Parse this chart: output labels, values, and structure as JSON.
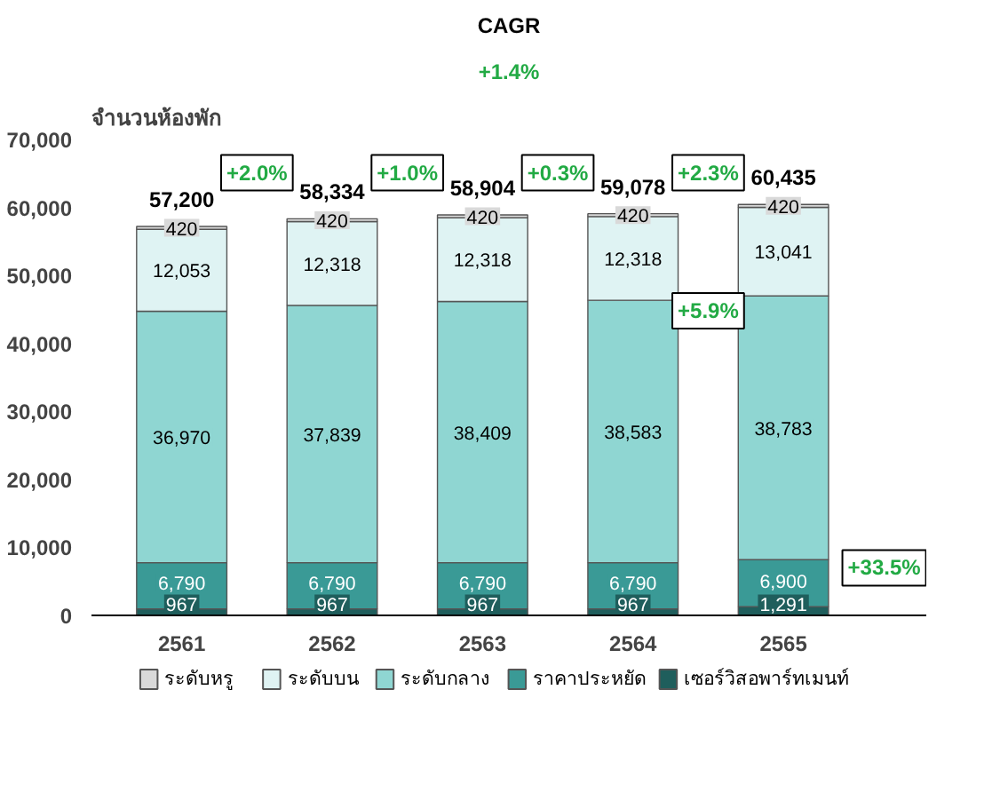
{
  "chart_data": {
    "type": "bar",
    "stacked": true,
    "ylabel": "จำนวนห้องพัก",
    "categories": [
      "2561",
      "2562",
      "2563",
      "2564",
      "2565"
    ],
    "series": [
      {
        "name": "เซอร์วิสอพาร์ทเมนท์",
        "color": "#1f5e5c",
        "values": [
          967,
          967,
          967,
          967,
          1291
        ],
        "value_labels": [
          "967",
          "967",
          "967",
          "967",
          "1,291"
        ]
      },
      {
        "name": "ราคาประหยัด",
        "color": "#3a9a96",
        "values": [
          6790,
          6790,
          6790,
          6790,
          6900
        ],
        "value_labels": [
          "6,790",
          "6,790",
          "6,790",
          "6,790",
          "6,900"
        ]
      },
      {
        "name": "ระดับกลาง",
        "color": "#8fd6d2",
        "values": [
          36970,
          37839,
          38409,
          38583,
          38783
        ],
        "value_labels": [
          "36,970",
          "37,839",
          "38,409",
          "38,583",
          "38,783"
        ]
      },
      {
        "name": "ระดับบน",
        "color": "#dff3f3",
        "values": [
          12053,
          12318,
          12318,
          12318,
          13041
        ],
        "value_labels": [
          "12,053",
          "12,318",
          "12,318",
          "12,318",
          "13,041"
        ]
      },
      {
        "name": "ระดับหรู",
        "color": "#d9d9d9",
        "values": [
          420,
          420,
          420,
          420,
          420
        ],
        "value_labels": [
          "420",
          "420",
          "420",
          "420",
          "420"
        ]
      }
    ],
    "totals": [
      "57,200",
      "58,334",
      "58,904",
      "59,078",
      "60,435"
    ],
    "ylim": [
      0,
      70000
    ],
    "yticks": [
      {
        "value": 0,
        "label": "0"
      },
      {
        "value": 10000,
        "label": "10,000"
      },
      {
        "value": 20000,
        "label": "20,000"
      },
      {
        "value": 30000,
        "label": "30,000"
      },
      {
        "value": 40000,
        "label": "40,000"
      },
      {
        "value": 50000,
        "label": "50,000"
      },
      {
        "value": 60000,
        "label": "60,000"
      },
      {
        "value": 70000,
        "label": "70,000"
      }
    ],
    "grid": false,
    "legend": "bottom",
    "annotations": [
      "CAGR",
      "+1.4%",
      "+2.0%",
      "+1.0%",
      "+0.3%",
      "+2.3%",
      "+5.9%",
      "+33.5%"
    ]
  }
}
